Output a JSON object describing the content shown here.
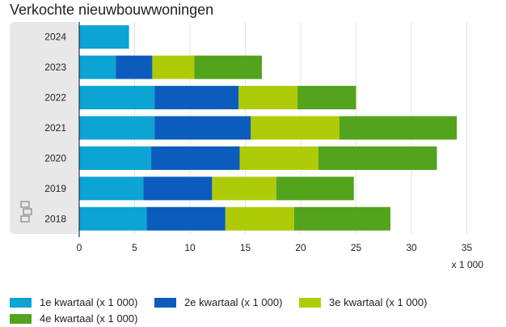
{
  "chart_data": {
    "type": "bar",
    "orientation": "horizontal",
    "stacked": true,
    "title": "Verkochte nieuwbouwwoningen",
    "categories": [
      "2024",
      "2023",
      "2022",
      "2021",
      "2020",
      "2019",
      "2018"
    ],
    "series": [
      {
        "name": "1e kwartaal (x 1 000)",
        "color": "#0ba4d3",
        "values": [
          4.5,
          3.3,
          6.8,
          6.8,
          6.5,
          5.8,
          6.1
        ]
      },
      {
        "name": "2e kwartaal (x 1 000)",
        "color": "#0c5cbd",
        "values": [
          0,
          3.3,
          7.6,
          8.7,
          8.0,
          6.2,
          7.1
        ]
      },
      {
        "name": "3e kwartaal (x 1 000)",
        "color": "#afcb08",
        "values": [
          0,
          3.8,
          5.3,
          8.0,
          7.1,
          5.8,
          6.2
        ]
      },
      {
        "name": "4e kwartaal (x 1 000)",
        "color": "#53a31d",
        "values": [
          0,
          6.1,
          5.3,
          10.6,
          10.7,
          7.0,
          8.7
        ]
      }
    ],
    "x_ticks": [
      0,
      5,
      10,
      15,
      20,
      25,
      30,
      35
    ],
    "xlim": [
      0,
      37
    ],
    "xlabel": "x 1 000",
    "ylabel": "",
    "grid": true,
    "legend_position": "bottom"
  }
}
